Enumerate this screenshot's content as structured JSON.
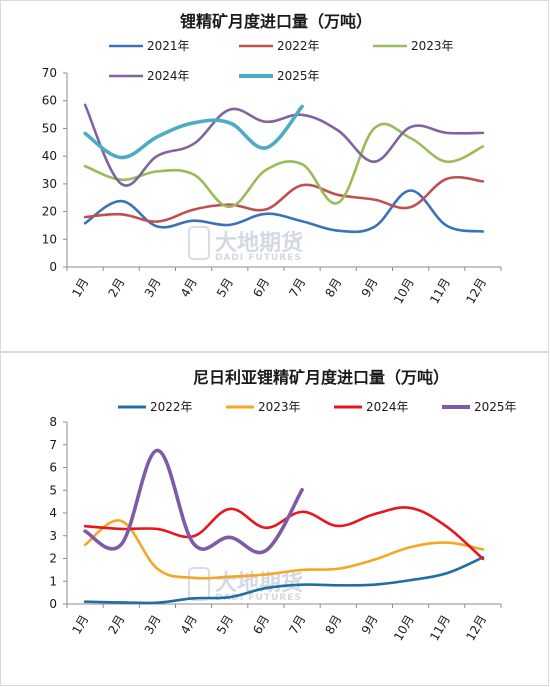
{
  "watermark": {
    "name_cn": "大地期货",
    "name_en": "DADI FUTURES"
  },
  "chart_data": [
    {
      "type": "line",
      "title": "锂精矿月度进口量（万吨）",
      "categories": [
        "1月",
        "2月",
        "3月",
        "4月",
        "5月",
        "6月",
        "7月",
        "8月",
        "9月",
        "10月",
        "11月",
        "12月"
      ],
      "ylim": [
        0,
        70
      ],
      "yticks": [
        0,
        10,
        20,
        30,
        40,
        50,
        60,
        70
      ],
      "grid": false,
      "legend_position": "top",
      "series": [
        {
          "name": "2021年",
          "color": "#3a73b8",
          "values": [
            15.8,
            23.8,
            14.6,
            16.7,
            15.2,
            19.2,
            16.5,
            13.1,
            14.5,
            27.6,
            14.9,
            12.8
          ]
        },
        {
          "name": "2022年",
          "color": "#c0504d",
          "values": [
            18.0,
            19.0,
            16.4,
            20.7,
            22.5,
            20.8,
            29.5,
            26.0,
            24.3,
            21.6,
            31.8,
            30.9
          ]
        },
        {
          "name": "2023年",
          "color": "#9bbb59",
          "values": [
            36.4,
            31.5,
            34.5,
            33.4,
            21.7,
            35.0,
            37.1,
            23.2,
            50.1,
            46.5,
            38.0,
            43.5
          ]
        },
        {
          "name": "2024年",
          "color": "#8064a2",
          "values": [
            58.5,
            30.0,
            40.1,
            44.4,
            56.8,
            52.4,
            54.9,
            49.2,
            38.0,
            50.5,
            48.4,
            48.4
          ]
        },
        {
          "name": "2025年",
          "color": "#4bacc6",
          "values": [
            48.2,
            39.5,
            47.0,
            52.0,
            52.0,
            43.0,
            57.9,
            null,
            null,
            null,
            null,
            null
          ]
        }
      ]
    },
    {
      "type": "line",
      "title": "尼日利亚锂精矿月度进口量（万吨）",
      "categories": [
        "1月",
        "2月",
        "3月",
        "4月",
        "5月",
        "6月",
        "7月",
        "8月",
        "9月",
        "10月",
        "11月",
        "12月"
      ],
      "ylim": [
        0,
        8
      ],
      "yticks": [
        0,
        1,
        2,
        3,
        4,
        5,
        6,
        7,
        8
      ],
      "grid": false,
      "legend_position": "top",
      "series": [
        {
          "name": "2022年",
          "color": "#1f6fa3",
          "values": [
            0.1,
            0.07,
            0.06,
            0.25,
            0.3,
            0.7,
            0.85,
            0.82,
            0.85,
            1.05,
            1.35,
            2.05
          ]
        },
        {
          "name": "2023年",
          "color": "#f5a623",
          "values": [
            2.6,
            3.65,
            1.55,
            1.15,
            1.2,
            1.3,
            1.5,
            1.55,
            1.95,
            2.5,
            2.7,
            2.4
          ]
        },
        {
          "name": "2024年",
          "color": "#e8161b",
          "values": [
            3.42,
            3.3,
            3.3,
            2.98,
            4.18,
            3.35,
            4.05,
            3.43,
            3.95,
            4.22,
            3.4,
            1.98
          ]
        },
        {
          "name": "2025年",
          "color": "#7e5aa8",
          "values": [
            3.2,
            2.62,
            6.75,
            2.65,
            2.93,
            2.35,
            5.02,
            null,
            null,
            null,
            null,
            null
          ]
        }
      ]
    }
  ]
}
